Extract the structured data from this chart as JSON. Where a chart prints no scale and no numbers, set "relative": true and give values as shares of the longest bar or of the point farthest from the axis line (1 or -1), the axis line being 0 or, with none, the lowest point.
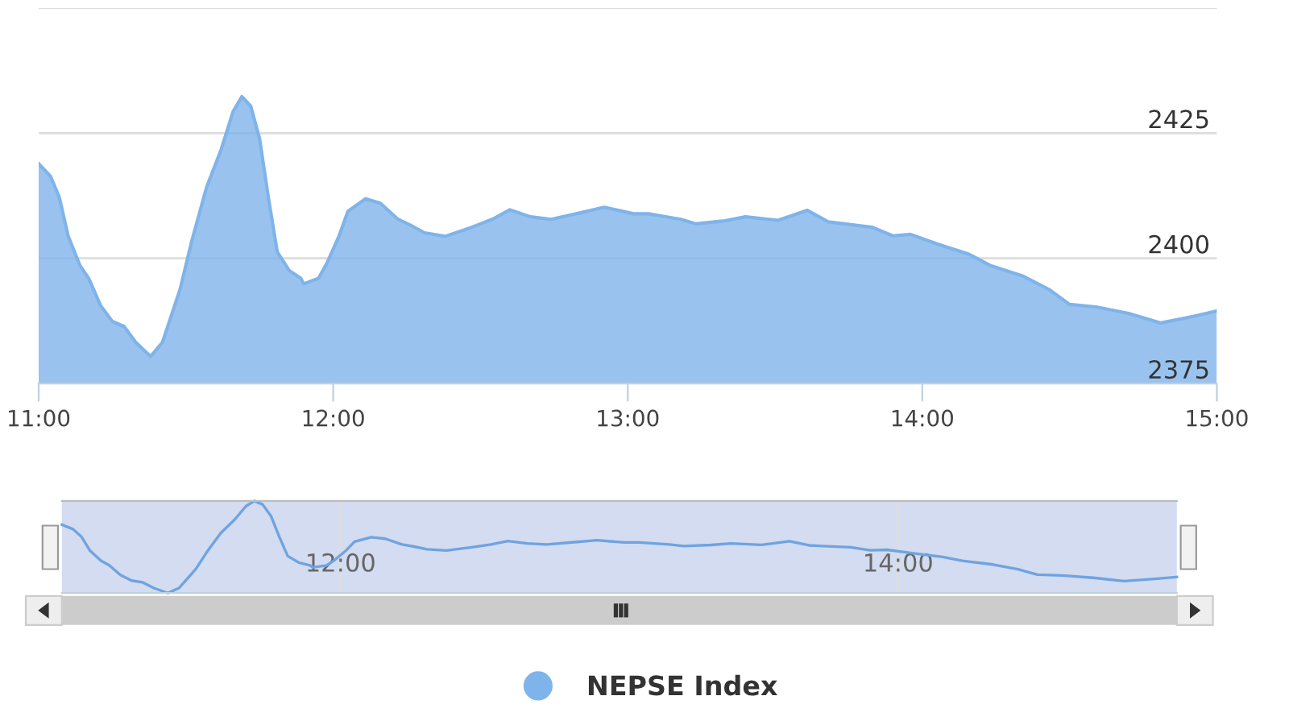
{
  "chart_data": [
    {
      "type": "area",
      "legend": "bottom",
      "grid": "y",
      "marker": "none",
      "xlim": [
        11,
        15
      ],
      "ylim": [
        2375,
        2450
      ],
      "xticks": [
        {
          "value": 11,
          "label": "11:00"
        },
        {
          "value": 12,
          "label": "12:00"
        },
        {
          "value": 13,
          "label": "13:00"
        },
        {
          "value": 14,
          "label": "14:00"
        },
        {
          "value": 15,
          "label": "15:00"
        }
      ],
      "yticks": [
        2375,
        2400,
        2425,
        {
          "value": 2450,
          "label": null
        }
      ],
      "series": [
        {
          "name": "NEPSE Index",
          "color": "#7fb4ea",
          "x": [
            11.0,
            11.04,
            11.07,
            11.1,
            11.14,
            11.17,
            11.21,
            11.25,
            11.29,
            11.33,
            11.38,
            11.42,
            11.48,
            11.52,
            11.57,
            11.62,
            11.66,
            11.69,
            11.72,
            11.75,
            11.78,
            11.81,
            11.85,
            11.89,
            11.9,
            11.95,
            11.98,
            12.02,
            12.05,
            12.11,
            12.16,
            12.22,
            12.26,
            12.31,
            12.38,
            12.47,
            12.54,
            12.6,
            12.67,
            12.74,
            12.84,
            12.92,
            13.02,
            13.07,
            13.18,
            13.23,
            13.33,
            13.4,
            13.51,
            13.61,
            13.68,
            13.83,
            13.9,
            13.96,
            14.05,
            14.16,
            14.23,
            14.34,
            14.43,
            14.5,
            14.59,
            14.7,
            14.81,
            14.92,
            15.0
          ],
          "values": [
            2418.9,
            2416.4,
            2412.2,
            2404.5,
            2398.6,
            2396.0,
            2390.6,
            2387.4,
            2386.4,
            2383.2,
            2380.4,
            2383.2,
            2393.8,
            2403.5,
            2414.2,
            2421.8,
            2429.3,
            2432.3,
            2430.4,
            2423.9,
            2412.1,
            2401.3,
            2397.6,
            2396.0,
            2394.9,
            2396.0,
            2399.2,
            2404.5,
            2409.4,
            2411.9,
            2411.0,
            2407.8,
            2406.7,
            2405.1,
            2404.4,
            2406.2,
            2407.8,
            2409.7,
            2408.3,
            2407.8,
            2409.1,
            2410.2,
            2408.9,
            2408.9,
            2407.8,
            2406.9,
            2407.5,
            2408.3,
            2407.6,
            2409.6,
            2407.3,
            2406.2,
            2404.5,
            2404.8,
            2402.9,
            2400.8,
            2398.6,
            2396.5,
            2393.8,
            2390.8,
            2390.3,
            2389.0,
            2387.1,
            2388.4,
            2389.5
          ]
        }
      ]
    },
    {
      "type": "line",
      "tick_labels": "x",
      "grid": "x",
      "relative": true,
      "xlim": [
        11,
        15
      ],
      "xticks": [
        {
          "value": 12,
          "label": "12:00"
        },
        {
          "value": 14,
          "label": "14:00"
        }
      ],
      "series": [
        {
          "color": "#6fa3e0",
          "x": [
            11.0,
            11.04,
            11.07,
            11.1,
            11.14,
            11.17,
            11.21,
            11.25,
            11.29,
            11.33,
            11.38,
            11.42,
            11.48,
            11.52,
            11.57,
            11.62,
            11.66,
            11.69,
            11.72,
            11.75,
            11.78,
            11.81,
            11.85,
            11.89,
            11.9,
            11.95,
            11.98,
            12.02,
            12.05,
            12.11,
            12.16,
            12.22,
            12.26,
            12.31,
            12.38,
            12.47,
            12.54,
            12.6,
            12.67,
            12.74,
            12.84,
            12.92,
            13.02,
            13.07,
            13.18,
            13.23,
            13.33,
            13.4,
            13.51,
            13.61,
            13.68,
            13.83,
            13.9,
            13.96,
            14.05,
            14.16,
            14.23,
            14.34,
            14.43,
            14.5,
            14.59,
            14.7,
            14.81,
            14.92,
            15.0
          ],
          "values": [
            0.742,
            0.694,
            0.613,
            0.464,
            0.351,
            0.301,
            0.197,
            0.135,
            0.116,
            0.054,
            0,
            0.054,
            0.258,
            0.445,
            0.651,
            0.798,
            0.942,
            1,
            0.963,
            0.838,
            0.611,
            0.403,
            0.331,
            0.301,
            0.279,
            0.301,
            0.362,
            0.464,
            0.559,
            0.607,
            0.59,
            0.528,
            0.507,
            0.476,
            0.462,
            0.497,
            0.528,
            0.565,
            0.538,
            0.528,
            0.553,
            0.574,
            0.549,
            0.549,
            0.528,
            0.511,
            0.522,
            0.538,
            0.524,
            0.563,
            0.518,
            0.497,
            0.464,
            0.47,
            0.434,
            0.393,
            0.351,
            0.31,
            0.258,
            0.2,
            0.191,
            0.166,
            0.129,
            0.154,
            0.175
          ]
        }
      ]
    }
  ]
}
